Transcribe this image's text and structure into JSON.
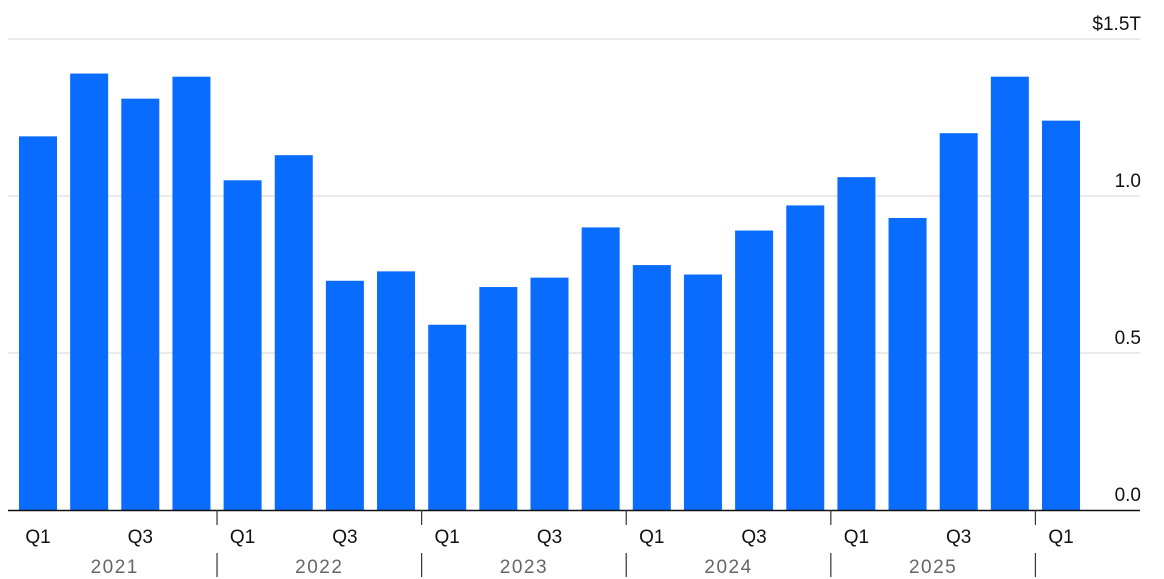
{
  "chart_data": {
    "type": "bar",
    "title": "",
    "xlabel": "",
    "ylabel": "",
    "ylim": [
      0,
      1.5
    ],
    "grid": true,
    "y_axis_position": "right",
    "bar_color": "#0a6cff",
    "y_ticks": [
      {
        "value": 0,
        "label": "0.0"
      },
      {
        "value": 0.5,
        "label": "0.5"
      },
      {
        "value": 1.0,
        "label": "1.0"
      },
      {
        "value": 1.5,
        "label": "$1.5T"
      }
    ],
    "categories": [
      "2021 Q1",
      "2021 Q2",
      "2021 Q3",
      "2021 Q4",
      "2022 Q1",
      "2022 Q2",
      "2022 Q3",
      "2022 Q4",
      "2023 Q1",
      "2023 Q2",
      "2023 Q3",
      "2023 Q4",
      "2024 Q1",
      "2024 Q2",
      "2024 Q3",
      "2024 Q4",
      "2025 Q1",
      "2025 Q2",
      "2025 Q3",
      "2025 Q4",
      "2026 Q1"
    ],
    "values": [
      1.19,
      1.39,
      1.31,
      1.38,
      1.05,
      1.13,
      0.73,
      0.76,
      0.59,
      0.71,
      0.74,
      0.9,
      0.78,
      0.75,
      0.89,
      0.97,
      1.06,
      0.93,
      1.2,
      1.38,
      1.24
    ],
    "quarter_tick_labels": [
      {
        "index": 0,
        "label": "Q1"
      },
      {
        "index": 2,
        "label": "Q3"
      },
      {
        "index": 4,
        "label": "Q1"
      },
      {
        "index": 6,
        "label": "Q3"
      },
      {
        "index": 8,
        "label": "Q1"
      },
      {
        "index": 10,
        "label": "Q3"
      },
      {
        "index": 12,
        "label": "Q1"
      },
      {
        "index": 14,
        "label": "Q3"
      },
      {
        "index": 16,
        "label": "Q1"
      },
      {
        "index": 18,
        "label": "Q3"
      },
      {
        "index": 20,
        "label": "Q1"
      }
    ],
    "year_labels": [
      "2021",
      "2022",
      "2023",
      "2024",
      "2025"
    ]
  }
}
